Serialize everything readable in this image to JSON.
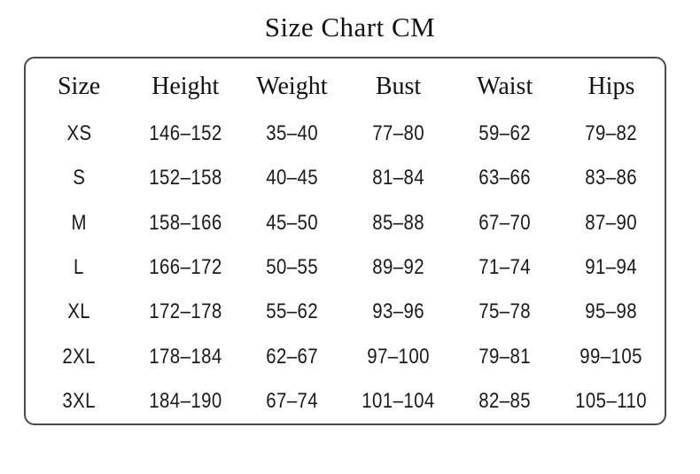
{
  "title": "Size Chart CM",
  "colors": {
    "background": "#ffffff",
    "text": "#1a1a1a",
    "border": "#4a4a4a"
  },
  "chart_data": {
    "type": "table",
    "title": "Size Chart CM",
    "headers": [
      "Size",
      "Height",
      "Weight",
      "Bust",
      "Waist",
      "Hips"
    ],
    "rows": [
      [
        "XS",
        "146–152",
        "35–40",
        "77–80",
        "59–62",
        "79–82"
      ],
      [
        "S",
        "152–158",
        "40–45",
        "81–84",
        "63–66",
        "83–86"
      ],
      [
        "M",
        "158–166",
        "45–50",
        "85–88",
        "67–70",
        "87–90"
      ],
      [
        "L",
        "166–172",
        "50–55",
        "89–92",
        "71–74",
        "91–94"
      ],
      [
        "XL",
        "172–178",
        "55–62",
        "93–96",
        "75–78",
        "95–98"
      ],
      [
        "2XL",
        "178–184",
        "62–67",
        "97–100",
        "79–81",
        "99–105"
      ],
      [
        "3XL",
        "184–190",
        "67–74",
        "101–104",
        "82–85",
        "105–110"
      ]
    ]
  }
}
